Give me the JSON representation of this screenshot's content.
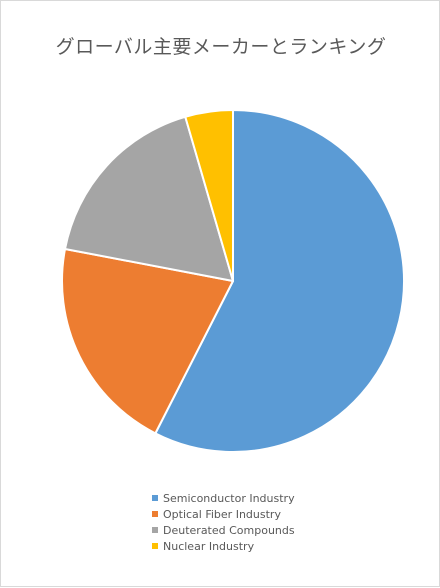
{
  "chart_data": {
    "type": "pie",
    "title": "グローバル主要メーカーとランキング",
    "categories": [
      "Semiconductor Industry",
      "Optical Fiber Industry",
      "Deuterated Compounds",
      "Nuclear Industry"
    ],
    "values": [
      57.5,
      20.5,
      17.5,
      4.5
    ],
    "colors": [
      "#5b9bd5",
      "#ed7d31",
      "#a5a5a5",
      "#ffc000"
    ],
    "legend_position": "bottom",
    "start_angle_deg": 0,
    "direction": "clockwise"
  }
}
